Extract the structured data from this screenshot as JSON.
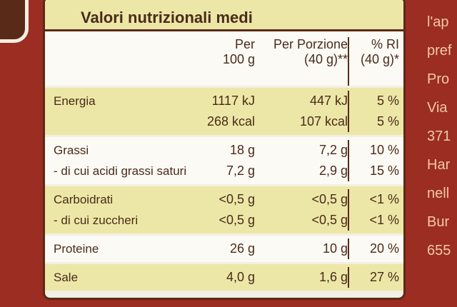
{
  "title": "Valori nutrizionali medi",
  "header": [
    [
      "Per",
      "100 g"
    ],
    [
      "Per Porzione",
      "(40 g)**"
    ],
    [
      "% RI",
      "(40 g)*"
    ]
  ],
  "sections": [
    [
      {
        "label": "Energia",
        "values": [
          "1117 kJ",
          "447 kJ",
          "5 %"
        ]
      },
      {
        "values": [
          "268 kcal",
          "107 kcal",
          "5 %"
        ]
      }
    ],
    [
      {
        "label": "Grassi",
        "values": [
          "18 g",
          "7,2 g",
          "10 %"
        ]
      },
      {
        "label": "- di cui acidi grassi saturi",
        "values": [
          "7,2 g",
          "2,9 g",
          "15 %"
        ]
      }
    ],
    [
      {
        "label": "Carboidrati",
        "values": [
          "<0,5 g",
          "<0,5 g",
          "<1 %"
        ]
      },
      {
        "label": "- di cui zuccheri",
        "values": [
          "<0,5 g",
          "<0,5 g",
          "<1 %"
        ]
      }
    ],
    [
      {
        "label": "Proteine",
        "values": [
          "26 g",
          "10 g",
          "20 %"
        ]
      }
    ],
    [
      {
        "label": "Sale",
        "values": [
          "4,0 g",
          "1,6 g",
          "27 %"
        ]
      }
    ]
  ],
  "side_text": [
    "l'ap",
    "pref",
    "Pro",
    "Via",
    "371",
    "Har",
    "nell",
    "Bur",
    "655"
  ]
}
